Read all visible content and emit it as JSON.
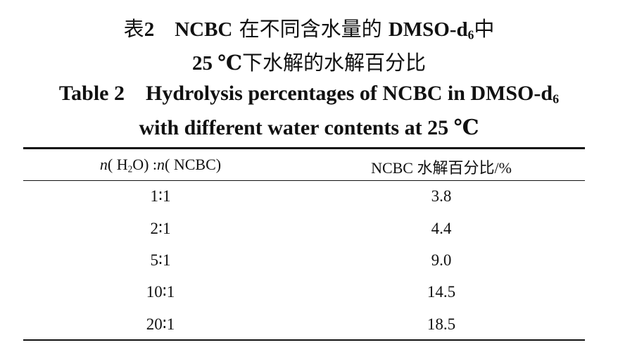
{
  "caption_cn": {
    "label": "表",
    "number": "2",
    "line1_bold_a": "NCBC",
    "line1_text_a": "在不同含水量的",
    "line1_bold_b": "DMSO-d",
    "line1_sub": "6",
    "line1_text_b": "中",
    "line2_bold": "25 ℃",
    "line2_text": "下水解的水解百分比"
  },
  "caption_en": {
    "label": "Table 2",
    "line1_text": "Hydrolysis percentages of NCBC in DMSO-d",
    "line1_sub": "6",
    "line2_text": "with different water contents at 25 ℃"
  },
  "table": {
    "header": {
      "col1_n1": "n",
      "col1_p1": "( H",
      "col1_sub": "2",
      "col1_p2": "O) :",
      "col1_n2": "n",
      "col1_p3": "( NCBC)",
      "col2": "NCBC 水解百分比/%"
    },
    "rows": [
      {
        "ratio": "1∶1",
        "percent": "3.8"
      },
      {
        "ratio": "2∶1",
        "percent": "4.4"
      },
      {
        "ratio": "5∶1",
        "percent": "9.0"
      },
      {
        "ratio": "10∶1",
        "percent": "14.5"
      },
      {
        "ratio": "20∶1",
        "percent": "18.5"
      }
    ]
  }
}
